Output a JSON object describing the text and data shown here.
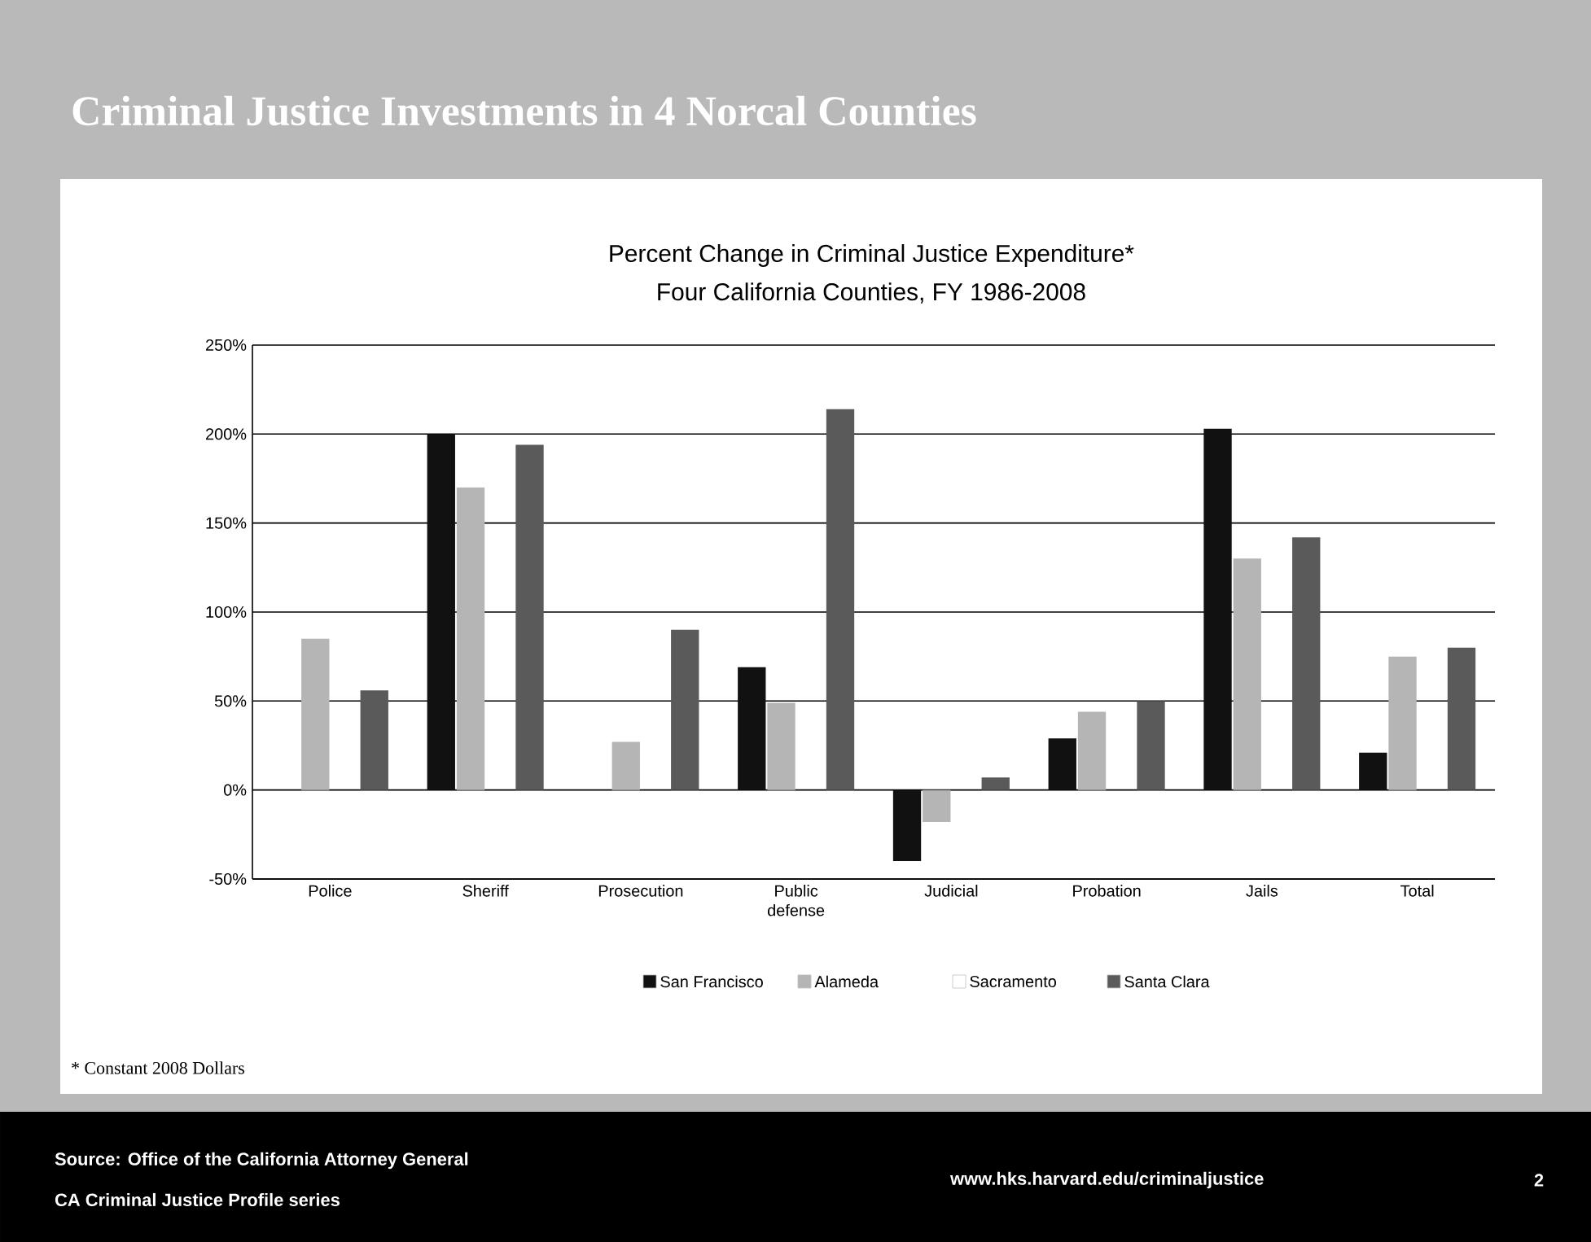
{
  "chart_data": {
    "type": "bar",
    "title": "Criminal Justice Investments in 4 Norcal Counties",
    "subtitle": "Percent Change in Criminal Justice Expenditure*",
    "categories": [
      "Police",
      "Sheriff",
      "Prosecution",
      "Public defense",
      "Judicial",
      "Probation",
      "Jails",
      "Total"
    ],
    "series": [
      {
        "name": "San Francisco",
        "color": "#111111",
        "values": [
          null,
          200,
          null,
          69,
          -40,
          29,
          203,
          21
        ]
      },
      {
        "name": "Alameda",
        "color": "#b5b5b5",
        "values": [
          85,
          170,
          27,
          49,
          -18,
          44,
          130,
          75
        ]
      },
      {
        "name": "Sacramento",
        "color": "#ffffff",
        "values": [
          null,
          null,
          null,
          null,
          null,
          null,
          null,
          null
        ]
      },
      {
        "name": "Santa Clara",
        "color": "#5a5a5a",
        "values": [
          56,
          194,
          90,
          214,
          7,
          50,
          142,
          80
        ]
      }
    ],
    "ylim": [
      -50,
      250
    ],
    "yticks": [
      {
        "value": -50,
        "label": "-50%"
      },
      {
        "value": 0,
        "label": "0%"
      },
      {
        "value": 50,
        "label": "50%"
      },
      {
        "value": 100,
        "label": "100%"
      },
      {
        "value": 150,
        "label": "150%"
      },
      {
        "value": 200,
        "label": "200%"
      },
      {
        "value": 250,
        "label": "250%"
      }
    ],
    "grid": "y",
    "legend": "bottom",
    "annotations": [
      "Four California Counties, FY 1986-2008",
      "* Constant 2008 Dollars",
      "Source: Office of the California Attorney General",
      "CA Criminal Justice Profile series",
      "www.hks.harvard.edu/criminaljustice",
      "2"
    ]
  }
}
